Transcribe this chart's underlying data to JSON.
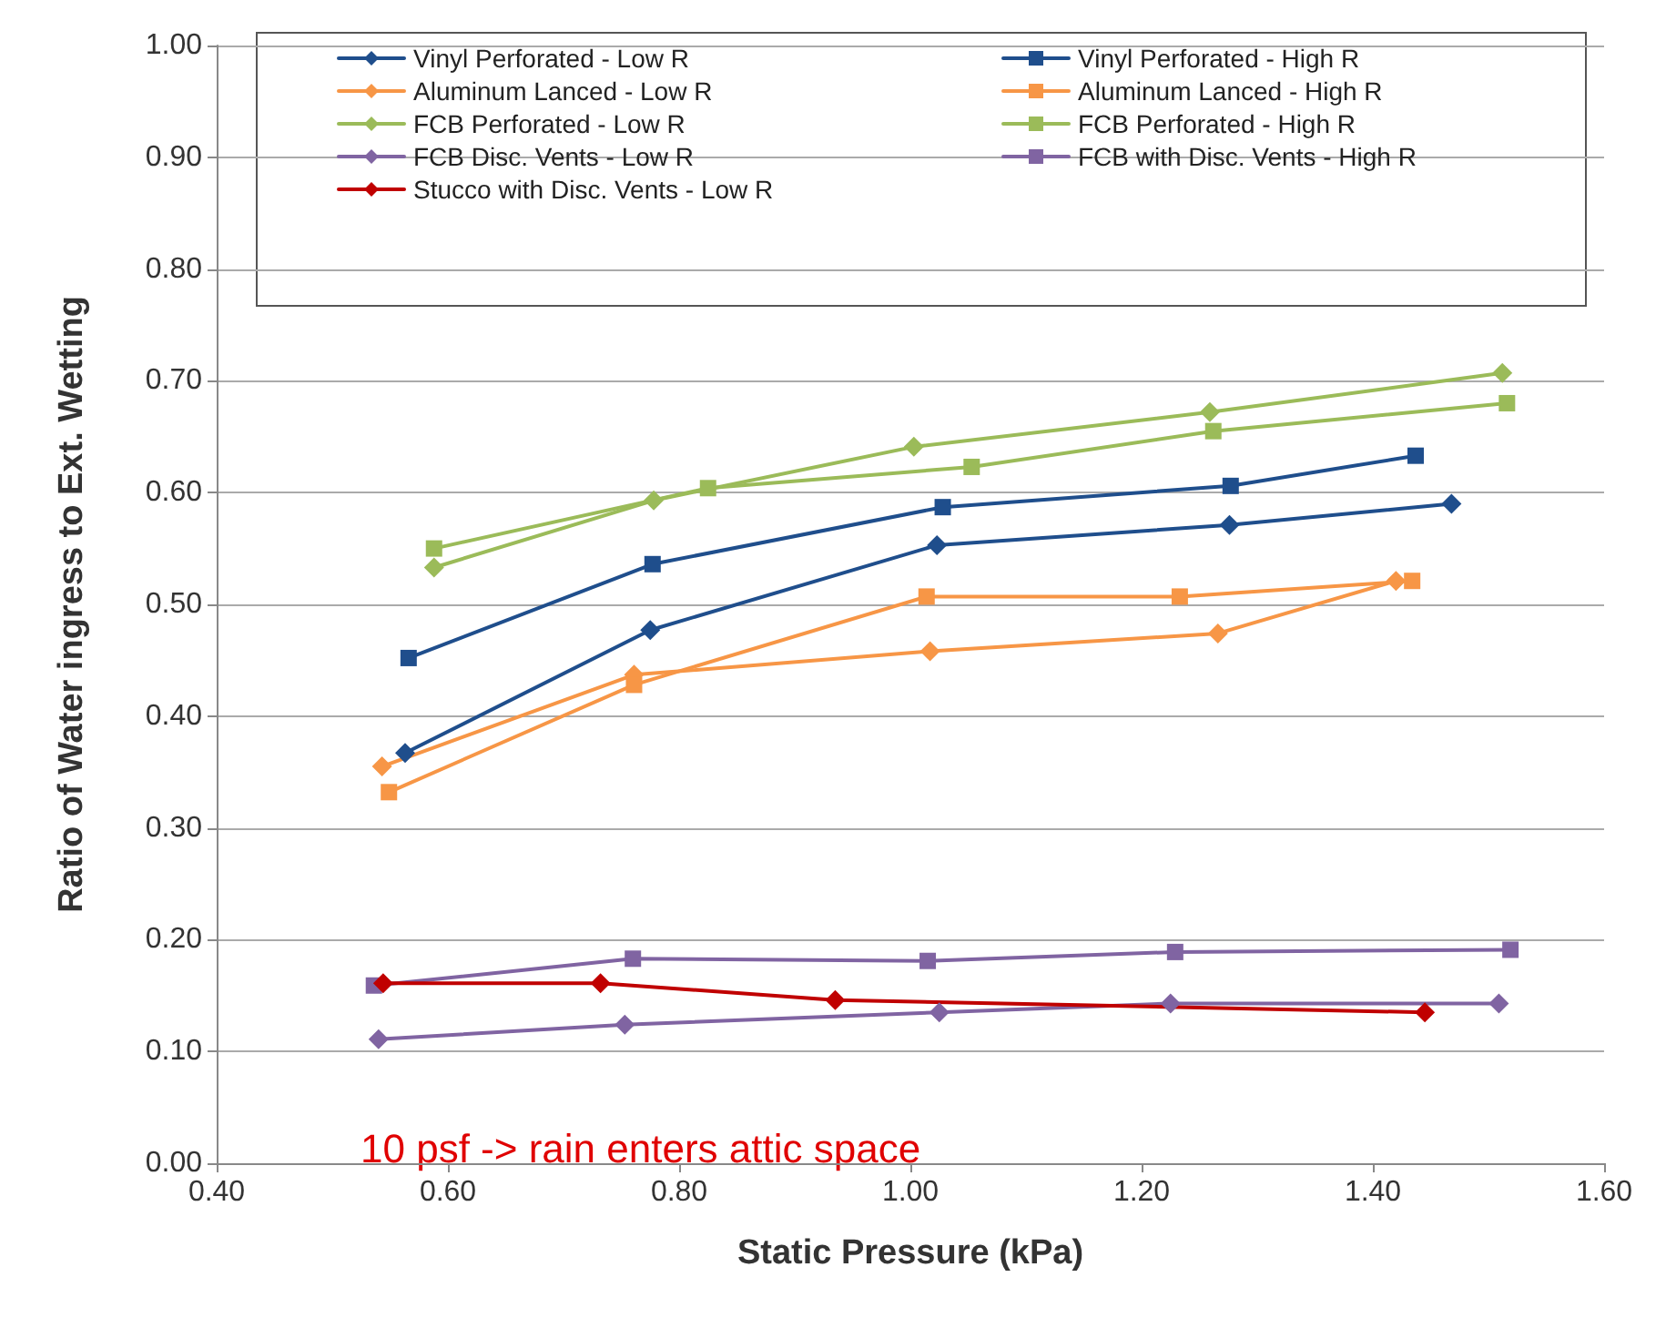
{
  "chart_data": {
    "type": "line",
    "xlabel": "Static Pressure (kPa)",
    "ylabel": "Ratio of Water ingress to Ext. Wetting",
    "xlim": [
      0.4,
      1.6
    ],
    "xticks": [
      {
        "value": 0.4,
        "label": "0.40"
      },
      {
        "value": 0.6,
        "label": "0.60"
      },
      {
        "value": 0.8,
        "label": "0.80"
      },
      {
        "value": 1.0,
        "label": "1.00"
      },
      {
        "value": 1.2,
        "label": "1.20"
      },
      {
        "value": 1.4,
        "label": "1.40"
      },
      {
        "value": 1.6,
        "label": "1.60"
      }
    ],
    "ylim": [
      0,
      1
    ],
    "yticks": [
      {
        "value": 0,
        "label": "0.00"
      },
      {
        "value": 0.1,
        "label": "0.10"
      },
      {
        "value": 0.2,
        "label": "0.20"
      },
      {
        "value": 0.3,
        "label": "0.30"
      },
      {
        "value": 0.4,
        "label": "0.40"
      },
      {
        "value": 0.5,
        "label": "0.50"
      },
      {
        "value": 0.6,
        "label": "0.60"
      },
      {
        "value": 0.7,
        "label": "0.70"
      },
      {
        "value": 0.8,
        "label": "0.80"
      },
      {
        "value": 0.9,
        "label": "0.90"
      },
      {
        "value": 1.0,
        "label": "1.00"
      }
    ],
    "grid": "y",
    "legend": "top right",
    "line_style": "solid",
    "annotations": [
      "10 psf -> rain enters attic space"
    ],
    "series": [
      {
        "name": "Vinyl Perforated - Low R",
        "color": "#1f4e8c",
        "marker": "diamond",
        "x": [
          0.563,
          0.775,
          1.023,
          1.276,
          1.468
        ],
        "values": [
          0.367,
          0.477,
          0.553,
          0.571,
          0.59
        ]
      },
      {
        "name": "Vinyl Perforated - High R",
        "color": "#1f4e8c",
        "marker": "square",
        "x": [
          0.566,
          0.777,
          1.028,
          1.277,
          1.437
        ],
        "values": [
          0.452,
          0.536,
          0.587,
          0.606,
          0.633
        ]
      },
      {
        "name": "Aluminum Lanced - Low R",
        "color": "#f79646",
        "marker": "diamond",
        "x": [
          0.543,
          0.761,
          1.017,
          1.266,
          1.42
        ],
        "values": [
          0.355,
          0.437,
          0.458,
          0.474,
          0.521
        ]
      },
      {
        "name": "Aluminum Lanced - High R",
        "color": "#f79646",
        "marker": "square",
        "x": [
          0.549,
          0.761,
          1.014,
          1.233,
          1.434
        ],
        "values": [
          0.332,
          0.428,
          0.507,
          0.507,
          0.521
        ]
      },
      {
        "name": "FCB Perforated - Low R",
        "color": "#9bbb59",
        "marker": "diamond",
        "x": [
          0.588,
          0.778,
          1.003,
          1.259,
          1.512
        ],
        "values": [
          0.533,
          0.593,
          0.641,
          0.672,
          0.707
        ]
      },
      {
        "name": "FCB Perforated - High R",
        "color": "#9bbb59",
        "marker": "square",
        "x": [
          0.588,
          0.825,
          1.053,
          1.262,
          1.516
        ],
        "values": [
          0.55,
          0.604,
          0.623,
          0.655,
          0.68
        ]
      },
      {
        "name": "FCB Disc. Vents - Low R",
        "color": "#8064a2",
        "marker": "diamond",
        "x": [
          0.54,
          0.753,
          1.025,
          1.225,
          1.509
        ],
        "values": [
          0.111,
          0.124,
          0.135,
          0.143,
          0.143
        ]
      },
      {
        "name": "FCB with Disc. Vents - High R",
        "color": "#8064a2",
        "marker": "square",
        "x": [
          0.536,
          0.76,
          1.015,
          1.229,
          1.519
        ],
        "values": [
          0.159,
          0.183,
          0.181,
          0.189,
          0.191
        ]
      },
      {
        "name": "Stucco with Disc. Vents - Low R",
        "color": "#c00000",
        "marker": "diamond",
        "x": [
          0.544,
          0.732,
          0.935,
          1.445
        ],
        "values": [
          0.161,
          0.161,
          0.146,
          0.135
        ]
      }
    ]
  }
}
